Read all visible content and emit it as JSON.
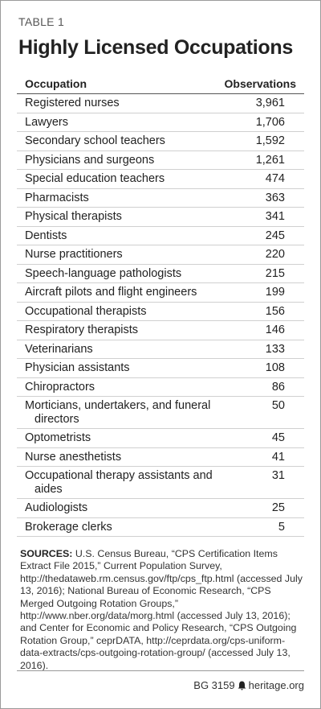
{
  "header": {
    "label": "TABLE 1",
    "title": "Highly Licensed Occupations"
  },
  "table": {
    "columns": [
      "Occupation",
      "Observations"
    ],
    "rows": [
      [
        "Registered nurses",
        "3,961"
      ],
      [
        "Lawyers",
        "1,706"
      ],
      [
        "Secondary school teachers",
        "1,592"
      ],
      [
        "Physicians and surgeons",
        "1,261"
      ],
      [
        "Special education teachers",
        "474"
      ],
      [
        "Pharmacists",
        "363"
      ],
      [
        "Physical therapists",
        "341"
      ],
      [
        "Dentists",
        "245"
      ],
      [
        "Nurse practitioners",
        "220"
      ],
      [
        "Speech-language pathologists",
        "215"
      ],
      [
        "Aircraft pilots and flight engineers",
        "199"
      ],
      [
        "Occupational therapists",
        "156"
      ],
      [
        "Respiratory therapists",
        "146"
      ],
      [
        "Veterinarians",
        "133"
      ],
      [
        "Physician assistants",
        "108"
      ],
      [
        "Chiropractors",
        "86"
      ],
      [
        "Morticians, undertakers, and funeral directors",
        "50"
      ],
      [
        "Optometrists",
        "45"
      ],
      [
        "Nurse anesthetists",
        "41"
      ],
      [
        "Occupational therapy assistants and aides",
        "31"
      ],
      [
        "Audiologists",
        "25"
      ],
      [
        "Brokerage clerks",
        "5"
      ]
    ]
  },
  "sources": {
    "label": "SOURCES:",
    "text": "U.S. Census Bureau, “CPS Certification Items Extract File 2015,” Current Population Survey, http://thedataweb.rm.census.gov/ftp/cps_ftp.html (accessed July 13, 2016); National Bureau of Economic Research, “CPS Merged Outgoing Rotation Groups,” http://www.nber.org/data/morg.html (accessed July 13, 2016); and Center for Economic and Policy Research, “CPS Outgoing Rotation Group,” ceprDATA, http://ceprdata.org/cps-uniform-data-extracts/cps-outgoing-rotation-group/ (accessed July 13, 2016)."
  },
  "footer": {
    "code": "BG 3159",
    "site": "heritage.org"
  }
}
